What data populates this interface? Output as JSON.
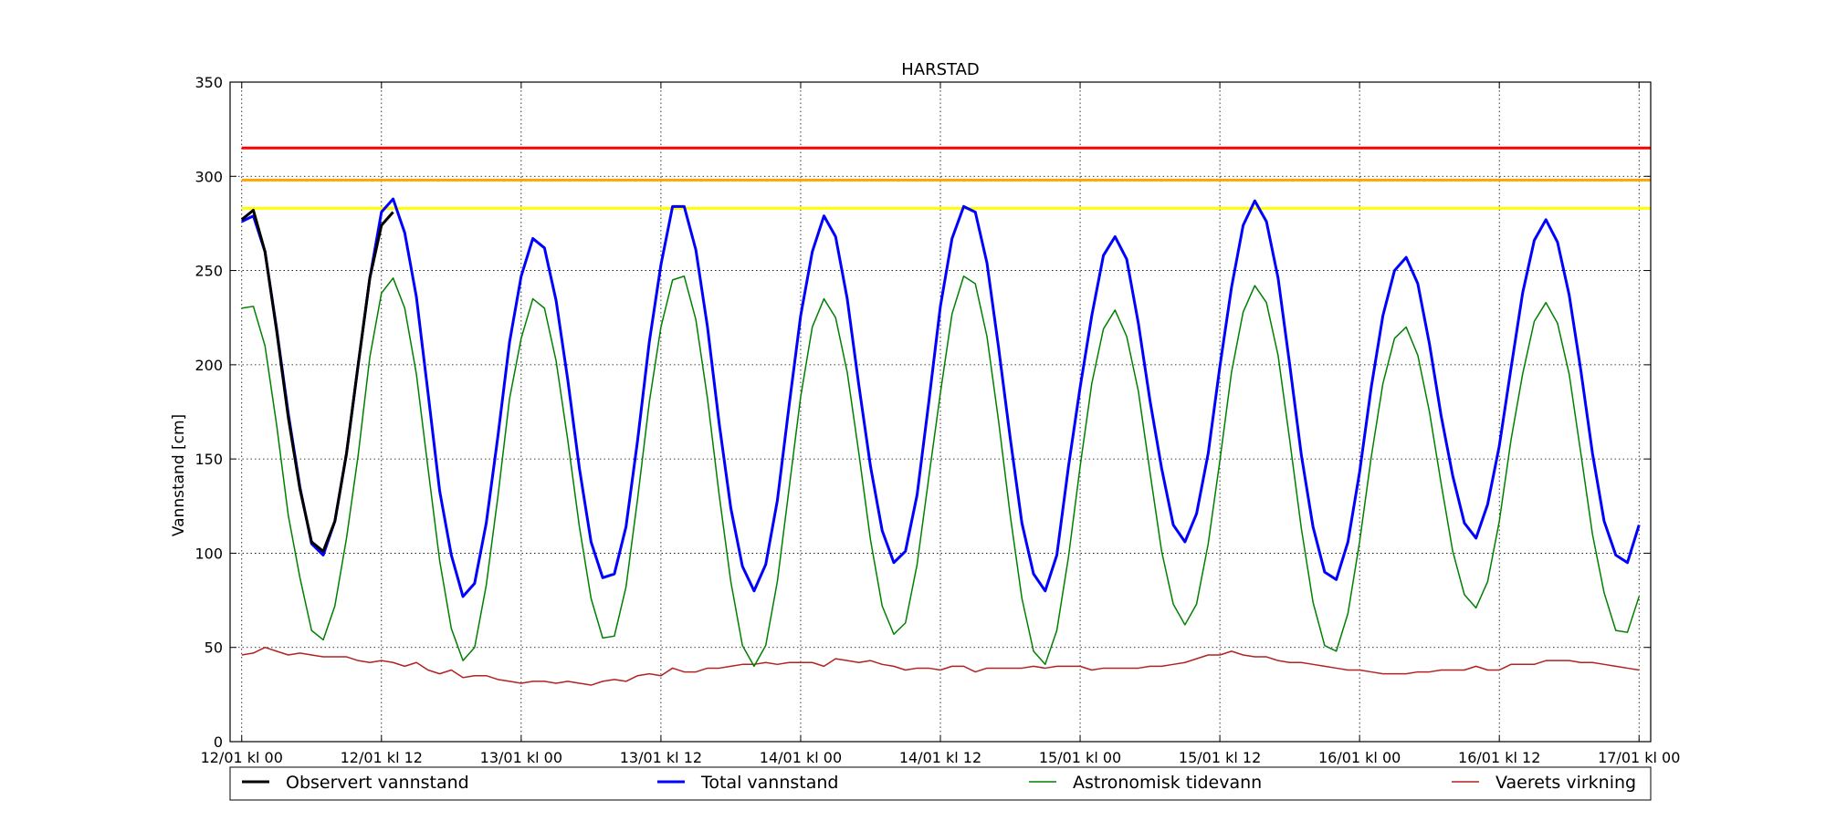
{
  "chart_data": {
    "type": "line",
    "title": "HARSTAD",
    "xlabel": "",
    "ylabel": "Vannstand [cm]",
    "ylim": [
      0,
      350
    ],
    "yticks": [
      0,
      50,
      100,
      150,
      200,
      250,
      300,
      350
    ],
    "xlim_hours": [
      -1,
      121
    ],
    "x_unit": "hours since 12/01 kl 00",
    "step_hours": 1,
    "xticks": [
      {
        "h": 0,
        "label": "12/01 kl 00"
      },
      {
        "h": 12,
        "label": "12/01 kl 12"
      },
      {
        "h": 24,
        "label": "13/01 kl 00"
      },
      {
        "h": 36,
        "label": "13/01 kl 12"
      },
      {
        "h": 48,
        "label": "14/01 kl 00"
      },
      {
        "h": 60,
        "label": "14/01 kl 12"
      },
      {
        "h": 72,
        "label": "15/01 kl 00"
      },
      {
        "h": 84,
        "label": "15/01 kl 12"
      },
      {
        "h": 96,
        "label": "16/01 kl 00"
      },
      {
        "h": 108,
        "label": "16/01 kl 12"
      },
      {
        "h": 120,
        "label": "17/01 kl 00"
      }
    ],
    "grid": true,
    "legend_placement": "below",
    "thresholds": [
      {
        "value": 315,
        "color": "#ff0000"
      },
      {
        "value": 298,
        "color": "#ffa500"
      },
      {
        "value": 283,
        "color": "#ffff00"
      }
    ],
    "series": [
      {
        "name": "Observert vannstand",
        "color": "#000000",
        "width": 3,
        "start_hour": 0,
        "values": [
          277,
          282,
          260,
          218,
          172,
          134,
          106,
          101,
          117,
          153,
          200,
          246,
          274,
          281
        ]
      },
      {
        "name": "Total vannstand",
        "color": "#0000ff",
        "width": 3,
        "start_hour": 0,
        "values": [
          276,
          279,
          260,
          219,
          174,
          135,
          105,
          99,
          117,
          153,
          200,
          246,
          281,
          288,
          270,
          236,
          185,
          133,
          99,
          77,
          84,
          116,
          162,
          212,
          247,
          267,
          262,
          234,
          192,
          145,
          106,
          87,
          89,
          114,
          160,
          212,
          253,
          284,
          284,
          261,
          220,
          169,
          124,
          93,
          80,
          94,
          128,
          178,
          226,
          260,
          279,
          268,
          235,
          189,
          146,
          112,
          95,
          101,
          131,
          180,
          231,
          267,
          284,
          281,
          254,
          209,
          161,
          116,
          89,
          80,
          99,
          146,
          188,
          226,
          258,
          268,
          256,
          222,
          181,
          145,
          115,
          106,
          121,
          153,
          199,
          241,
          274,
          287,
          276,
          246,
          200,
          152,
          114,
          90,
          86,
          106,
          143,
          188,
          226,
          250,
          257,
          243,
          211,
          173,
          141,
          116,
          108,
          126,
          157,
          198,
          238,
          266,
          277,
          265,
          237,
          197,
          153,
          117,
          99,
          95,
          115
        ]
      },
      {
        "name": "Astronomisk tidevann",
        "color": "#008000",
        "width": 1.5,
        "start_hour": 0,
        "values": [
          230,
          231,
          210,
          168,
          120,
          87,
          59,
          54,
          72,
          108,
          152,
          204,
          238,
          246,
          230,
          195,
          145,
          96,
          60,
          43,
          50,
          83,
          130,
          182,
          214,
          235,
          230,
          202,
          160,
          114,
          76,
          55,
          56,
          82,
          129,
          180,
          220,
          245,
          247,
          224,
          182,
          131,
          85,
          51,
          40,
          51,
          85,
          134,
          183,
          220,
          235,
          225,
          196,
          153,
          107,
          72,
          57,
          63,
          94,
          140,
          185,
          227,
          247,
          243,
          215,
          170,
          120,
          76,
          48,
          41,
          59,
          98,
          146,
          190,
          219,
          229,
          215,
          186,
          143,
          101,
          73,
          62,
          73,
          105,
          149,
          196,
          228,
          242,
          233,
          205,
          160,
          113,
          74,
          51,
          48,
          68,
          106,
          151,
          190,
          214,
          220,
          205,
          175,
          137,
          101,
          78,
          71,
          85,
          117,
          160,
          195,
          223,
          233,
          222,
          195,
          153,
          110,
          79,
          59,
          58,
          77
        ]
      },
      {
        "name": "Vaerets virkning",
        "color": "#b22222",
        "width": 1.5,
        "start_hour": 0,
        "values": [
          46,
          47,
          50,
          48,
          46,
          47,
          46,
          45,
          45,
          45,
          43,
          42,
          43,
          42,
          40,
          42,
          38,
          36,
          38,
          34,
          35,
          35,
          33,
          32,
          31,
          32,
          32,
          31,
          32,
          31,
          30,
          32,
          33,
          32,
          35,
          36,
          35,
          39,
          37,
          37,
          39,
          39,
          40,
          41,
          41,
          42,
          41,
          42,
          42,
          42,
          40,
          44,
          43,
          42,
          43,
          41,
          40,
          38,
          39,
          39,
          38,
          40,
          40,
          37,
          39,
          39,
          39,
          39,
          40,
          39,
          40,
          40,
          40,
          38,
          39,
          39,
          39,
          39,
          40,
          40,
          41,
          42,
          44,
          46,
          46,
          48,
          46,
          45,
          45,
          43,
          42,
          42,
          41,
          40,
          39,
          38,
          38,
          37,
          36,
          36,
          36,
          37,
          37,
          38,
          38,
          38,
          40,
          38,
          38,
          41,
          41,
          41,
          43,
          43,
          43,
          42,
          42,
          41,
          40,
          39,
          38
        ]
      }
    ]
  }
}
